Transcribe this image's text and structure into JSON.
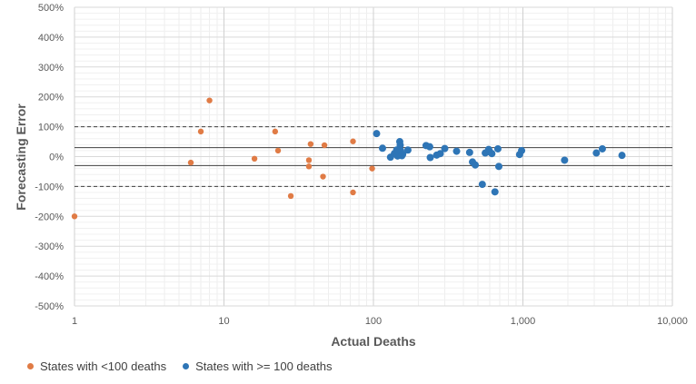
{
  "chart_data": {
    "type": "scatter",
    "title": "",
    "xlabel": "Actual Deaths",
    "ylabel": "Forecasting Error",
    "x_scale": "log",
    "xlim": [
      1,
      10000
    ],
    "ylim": [
      -500,
      500
    ],
    "x_ticks": [
      1,
      10,
      100,
      1000,
      10000
    ],
    "x_tick_labels": [
      "1",
      "10",
      "100",
      "1,000",
      "10,000"
    ],
    "y_ticks": [
      500,
      400,
      300,
      200,
      100,
      0,
      -100,
      -200,
      -300,
      -400,
      -500
    ],
    "y_tick_labels": [
      "500%",
      "400%",
      "300%",
      "200%",
      "100%",
      "0%",
      "-100%",
      "-200%",
      "-300%",
      "-400%",
      "-500%"
    ],
    "grid": true,
    "legend_position": "bottom-left",
    "reference_lines": [
      {
        "y": 100,
        "style": "dashed"
      },
      {
        "y": 30,
        "style": "solid"
      },
      {
        "y": -30,
        "style": "solid"
      },
      {
        "y": -100,
        "style": "dashed"
      }
    ],
    "series": [
      {
        "name": "States with  <100 deaths",
        "color": "#E07B45",
        "points": [
          [
            1,
            -200
          ],
          [
            6,
            -20
          ],
          [
            7,
            84
          ],
          [
            8,
            188
          ],
          [
            16,
            -7
          ],
          [
            22,
            84
          ],
          [
            23,
            20
          ],
          [
            28,
            -132
          ],
          [
            37,
            -12
          ],
          [
            37,
            -33
          ],
          [
            38,
            42
          ],
          [
            46,
            -67
          ],
          [
            47,
            38
          ],
          [
            73,
            51
          ],
          [
            73,
            -120
          ],
          [
            98,
            -40
          ]
        ]
      },
      {
        "name": "States with  >= 100 deaths",
        "color": "#2E75B6",
        "points": [
          [
            105,
            77
          ],
          [
            115,
            28
          ],
          [
            130,
            -2
          ],
          [
            138,
            10
          ],
          [
            143,
            22
          ],
          [
            145,
            2
          ],
          [
            148,
            15
          ],
          [
            150,
            50
          ],
          [
            151,
            38
          ],
          [
            152,
            20
          ],
          [
            155,
            3
          ],
          [
            157,
            8
          ],
          [
            170,
            22
          ],
          [
            225,
            37
          ],
          [
            238,
            33
          ],
          [
            240,
            -3
          ],
          [
            265,
            5
          ],
          [
            280,
            10
          ],
          [
            300,
            27
          ],
          [
            360,
            18
          ],
          [
            440,
            14
          ],
          [
            460,
            -18
          ],
          [
            480,
            -28
          ],
          [
            535,
            -93
          ],
          [
            560,
            12
          ],
          [
            590,
            24
          ],
          [
            600,
            16
          ],
          [
            620,
            10
          ],
          [
            650,
            -118
          ],
          [
            680,
            26
          ],
          [
            690,
            -33
          ],
          [
            950,
            7
          ],
          [
            980,
            20
          ],
          [
            1900,
            -12
          ],
          [
            3100,
            12
          ],
          [
            3400,
            26
          ],
          [
            4600,
            4
          ]
        ]
      }
    ]
  }
}
